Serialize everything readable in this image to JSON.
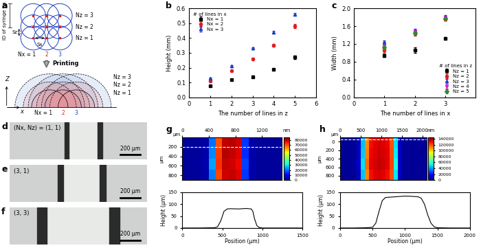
{
  "chart_data": [
    {
      "type": "diagram",
      "title": "a",
      "tip_label": "ID of syringe tip",
      "sx_label": "Sx",
      "sz_label": "Sz",
      "nz_labels": [
        "Nz = 1",
        "Nz = 2",
        "Nz = 3"
      ],
      "nx_labels": [
        "Nx = 1",
        "2",
        "3"
      ],
      "colors": [
        "#000000",
        "#e41a1c",
        "#1f3fbf"
      ],
      "arrow_label": "Printing",
      "z_label": "Z",
      "x_label": "x"
    },
    {
      "type": "scatter",
      "title": "b",
      "x_label": "The number of lines in z",
      "y_label": "Height (mm)",
      "x": [
        1,
        2,
        3,
        4,
        5
      ],
      "xlim": [
        0,
        6
      ],
      "xticks": [
        0,
        1,
        2,
        3,
        4,
        5,
        6
      ],
      "ylim": [
        0.0,
        0.6
      ],
      "yticks": [
        0.0,
        0.1,
        0.2,
        0.3,
        0.4,
        0.5,
        0.6
      ],
      "legend": "upper left",
      "legend_title": "# of lines in x",
      "series": [
        {
          "name": "Nx = 1",
          "color": "#000000",
          "marker": "square",
          "values": [
            0.08,
            0.12,
            0.14,
            0.19,
            0.27
          ],
          "errors": [
            0.005,
            0.006,
            0.007,
            0.006,
            0.01
          ]
        },
        {
          "name": "Nx = 2",
          "color": "#e41a1c",
          "marker": "circle",
          "values": [
            0.11,
            0.18,
            0.26,
            0.35,
            0.48
          ],
          "errors": [
            0.006,
            0.006,
            0.006,
            0.008,
            0.012
          ]
        },
        {
          "name": "Nx = 3",
          "color": "#1f3fbf",
          "marker": "triangle_up",
          "values": [
            0.13,
            0.21,
            0.33,
            0.44,
            0.56
          ],
          "errors": [
            0.006,
            0.006,
            0.006,
            0.006,
            0.008
          ]
        }
      ]
    },
    {
      "type": "scatter",
      "title": "c",
      "x_label": "The number of lines in x",
      "y_label": "Width (mm)",
      "x": [
        1,
        2,
        3
      ],
      "xlim": [
        0,
        4
      ],
      "xticks": [
        0,
        1,
        2,
        3
      ],
      "ylim": [
        0.0,
        2.0
      ],
      "yticks": [
        0.0,
        0.4,
        0.8,
        1.2,
        1.6,
        2.0
      ],
      "legend": "lower right",
      "legend_title": "# of lines in z",
      "series": [
        {
          "name": "Nz = 1",
          "color": "#000000",
          "marker": "square",
          "values": [
            0.94,
            1.06,
            1.33
          ],
          "errors": [
            0.04,
            0.06,
            0.03
          ]
        },
        {
          "name": "Nz = 2",
          "color": "#e41a1c",
          "marker": "circle",
          "values": [
            1.06,
            1.43,
            1.76
          ],
          "errors": [
            0.04,
            0.04,
            0.04
          ]
        },
        {
          "name": "Nz = 3",
          "color": "#1f3fbf",
          "marker": "triangle_up",
          "values": [
            1.24,
            1.5,
            1.81
          ],
          "errors": [
            0.04,
            0.04,
            0.04
          ]
        },
        {
          "name": "Nz = 4",
          "color": "#d61fd6",
          "marker": "triangle_down",
          "values": [
            1.15,
            1.48,
            1.79
          ],
          "errors": [
            0.04,
            0.04,
            0.04
          ]
        },
        {
          "name": "Nz = 5",
          "color": "#2e8b2e",
          "marker": "diamond",
          "values": [
            1.12,
            1.44,
            1.77
          ],
          "errors": [
            0.04,
            0.04,
            0.04
          ]
        }
      ]
    },
    {
      "type": "image",
      "title": "d",
      "label": "(Nx, Nz) = (1, 1)",
      "scale_bar": "200 µm",
      "scale_bar_length": 200,
      "xlim": [
        0,
        1400
      ],
      "stripe": [
        560,
        945
      ]
    },
    {
      "type": "image",
      "title": "e",
      "label": "(3, 1)",
      "scale_bar": "200 µm",
      "scale_bar_length": 200,
      "xlim": [
        0,
        1400
      ],
      "stripe": [
        490,
        980
      ]
    },
    {
      "type": "image",
      "title": "f",
      "label": "(3, 3)",
      "scale_bar": "200 µm",
      "scale_bar_length": 200,
      "xlim": [
        0,
        1400
      ],
      "stripe": [
        280,
        1120
      ]
    },
    {
      "type": "heatmap",
      "title": "g",
      "map_unit": "µm",
      "color_label": "nm",
      "x_edges": [
        0,
        100,
        200,
        300,
        400,
        500,
        600,
        700,
        800,
        900,
        1000,
        1100,
        1200,
        1300,
        1400,
        1500
      ],
      "y_edges": [
        0,
        225,
        450,
        675,
        900
      ],
      "cells": [
        [
          2000,
          2000,
          2000,
          3000,
          20000,
          70000,
          80000,
          81000,
          79000,
          15000,
          3000,
          2000,
          2000,
          2000,
          2000
        ],
        [
          2000,
          2000,
          2000,
          3000,
          22000,
          72000,
          81000,
          80000,
          78000,
          14000,
          3000,
          2000,
          2000,
          2000,
          2000
        ],
        [
          2000,
          2000,
          2500,
          3500,
          24000,
          73000,
          80000,
          79000,
          77000,
          16000,
          3000,
          2000,
          2000,
          2000,
          2000
        ],
        [
          2000,
          2000,
          2000,
          3000,
          21000,
          71000,
          79000,
          80000,
          78000,
          15000,
          3000,
          2000,
          2000,
          2000,
          2000
        ]
      ],
      "clim": [
        0,
        85000
      ],
      "cticks": [
        0,
        10000,
        20000,
        30000,
        40000,
        50000,
        60000,
        70000,
        80000
      ],
      "xlim": [
        0,
        1500
      ],
      "xticks": [
        0,
        400,
        800,
        1200
      ],
      "ylim": [
        900,
        0
      ],
      "yticks": [
        200,
        400,
        600,
        800
      ],
      "profile_y": 200,
      "profile": {
        "x": [
          0,
          200,
          400,
          440,
          480,
          520,
          560,
          600,
          700,
          800,
          860,
          880,
          900,
          930,
          960,
          1000,
          1200,
          1400,
          1500
        ],
        "values": [
          0,
          0,
          1,
          5,
          30,
          70,
          80,
          81,
          80,
          82,
          80,
          70,
          40,
          10,
          2,
          0,
          0,
          0,
          0
        ],
        "x_label": "Position (µm)",
        "y_label": "Height (µm)",
        "xlim": [
          0,
          1500
        ],
        "xticks": [
          0,
          500,
          1000,
          1500
        ],
        "ylim": [
          0,
          150
        ],
        "yticks": [
          0,
          50,
          100,
          150
        ]
      }
    },
    {
      "type": "heatmap",
      "title": "h",
      "map_unit": "µm",
      "color_label": "nm",
      "x_edges": [
        0,
        100,
        200,
        300,
        400,
        500,
        600,
        700,
        800,
        900,
        1000,
        1100,
        1200,
        1300,
        1400,
        1500,
        1600,
        1700,
        1800,
        1900,
        2000,
        2100
      ],
      "y_edges": [
        -100,
        150,
        400,
        650,
        900
      ],
      "cells": [
        [
          3000,
          3000,
          3000,
          3000,
          8000,
          45000,
          110000,
          130000,
          132000,
          134000,
          133000,
          131000,
          120000,
          50000,
          8000,
          3000,
          3000,
          3000,
          3000,
          3000,
          3000
        ],
        [
          3000,
          3000,
          3000,
          3000,
          9000,
          47000,
          112000,
          131000,
          133000,
          135000,
          134000,
          132000,
          121000,
          52000,
          9000,
          3000,
          3000,
          3000,
          3000,
          3000,
          3000
        ],
        [
          3000,
          3000,
          3000,
          4000,
          10000,
          50000,
          115000,
          132000,
          134000,
          136000,
          135000,
          132000,
          122000,
          55000,
          9000,
          3000,
          3000,
          3000,
          3000,
          3000,
          3000
        ],
        [
          3000,
          3000,
          3000,
          3000,
          8000,
          46000,
          111000,
          130000,
          133000,
          134000,
          133000,
          130000,
          120000,
          51000,
          8000,
          3000,
          3000,
          3000,
          3000,
          3000,
          3000
        ]
      ],
      "clim": [
        0,
        145000
      ],
      "cticks": [
        0,
        20000,
        40000,
        60000,
        80000,
        100000,
        120000,
        140000
      ],
      "xlim": [
        0,
        2100
      ],
      "xticks": [
        0,
        500,
        1000,
        1500,
        2000
      ],
      "ylim": [
        900,
        -100
      ],
      "yticks": [
        0,
        200,
        400,
        600,
        800
      ],
      "profile_y": -50,
      "profile": {
        "x": [
          0,
          200,
          400,
          500,
          550,
          600,
          650,
          700,
          800,
          900,
          1000,
          1100,
          1200,
          1250,
          1300,
          1350,
          1400,
          1450,
          1500,
          1700,
          1900,
          2000
        ],
        "values": [
          0,
          0,
          1,
          3,
          20,
          70,
          115,
          128,
          130,
          132,
          134,
          133,
          131,
          125,
          100,
          55,
          20,
          5,
          1,
          0,
          0,
          0
        ],
        "x_label": "Position (µm)",
        "y_label": "Height (µm)",
        "xlim": [
          0,
          2000
        ],
        "xticks": [
          0,
          500,
          1000,
          1500,
          2000
        ],
        "ylim": [
          0,
          150
        ],
        "yticks": [
          0,
          50,
          100,
          150
        ]
      }
    }
  ]
}
